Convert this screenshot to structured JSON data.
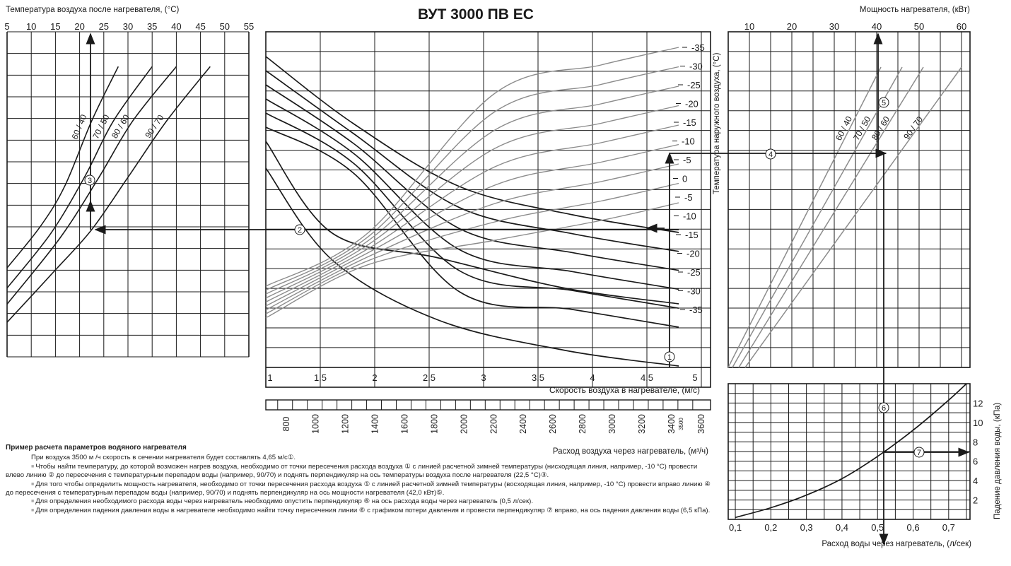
{
  "title": "ВУТ 3000 ПВ ЕС",
  "chart_data": [
    {
      "id": "outlet-temp",
      "type": "line",
      "xlabel": "Температура воздуха после нагревателя, (°C)",
      "x_ticks": [
        "5",
        "10",
        "15",
        "20",
        "25",
        "30",
        "35",
        "40",
        "45",
        "50",
        "55"
      ],
      "xlim": [
        5,
        55
      ],
      "series": [
        {
          "name": "60 / 40",
          "points": [
            [
              5,
              -14.5
            ],
            [
              12,
              -4
            ],
            [
              17,
              6
            ],
            [
              22.5,
              22
            ],
            [
              28,
              35.5
            ]
          ]
        },
        {
          "name": "70 / 50",
          "points": [
            [
              5,
              -19.5
            ],
            [
              14,
              -6
            ],
            [
              21,
              8
            ],
            [
              27,
              22
            ],
            [
              35,
              35.5
            ]
          ]
        },
        {
          "name": "80 / 60",
          "points": [
            [
              5,
              -23.5
            ],
            [
              16,
              -7
            ],
            [
              24,
              8
            ],
            [
              31,
              22
            ],
            [
              40,
              35.5
            ]
          ]
        },
        {
          "name": "90 / 70",
          "points": [
            [
              5,
              -28
            ],
            [
              15,
              -15
            ],
            [
              22.5,
              -5
            ],
            [
              30,
              8
            ],
            [
              38,
              22
            ],
            [
              47,
              35.5
            ]
          ]
        }
      ]
    },
    {
      "id": "air-speed",
      "type": "line",
      "ylabel": "Температура наружного воздуха, (°C)",
      "y_ticks": [
        "-35",
        "-30",
        "-25",
        "-20",
        "-15",
        "-10",
        "-5",
        "0",
        "-5",
        "-10",
        "-15",
        "-20",
        "-25",
        "-30",
        "-35"
      ],
      "x_ticks": [
        "1",
        "1,5",
        "2",
        "2,5",
        "3",
        "3,5",
        "4",
        "4,5",
        "5"
      ],
      "xlim": [
        1,
        5
      ],
      "x2label": "Скорость воздуха в нагревателе, (м/с)",
      "flow_label": "Расход воздуха через нагреватель, (м³/ч)",
      "flow_ticks": [
        "800",
        "1000",
        "1200",
        "1400",
        "1600",
        "1800",
        "2000",
        "2200",
        "2400",
        "2600",
        "2800",
        "3000",
        "3200",
        "3400",
        "3600"
      ],
      "flow_marker": "3500",
      "flow_lim": [
        720,
        3720
      ],
      "falling_temps": [
        -10,
        -15,
        -20,
        -25,
        -30,
        -35
      ],
      "rising_temps": [
        -35,
        -30,
        -25,
        -20,
        -15,
        -10,
        -5,
        0,
        -5,
        -10,
        -15,
        -20,
        -25,
        -30,
        -35
      ]
    },
    {
      "id": "heater-power",
      "type": "line",
      "xlabel": "Мощность нагревателя, (кВт)",
      "x_ticks": [
        "10",
        "20",
        "30",
        "40",
        "50",
        "60"
      ],
      "xlim": [
        5,
        62
      ],
      "series": [
        {
          "name": "60 / 40",
          "points": [
            [
              5,
              -35
            ],
            [
              28,
              2
            ],
            [
              41,
              20
            ]
          ]
        },
        {
          "name": "70 / 50",
          "points": [
            [
              6,
              -35
            ],
            [
              33,
              2
            ],
            [
              46,
              20
            ]
          ]
        },
        {
          "name": "80 / 60",
          "points": [
            [
              7.5,
              -35
            ],
            [
              37,
              2
            ],
            [
              51,
              20
            ]
          ]
        },
        {
          "name": "90 / 70",
          "points": [
            [
              9,
              -35
            ],
            [
              42,
              -8.5
            ],
            [
              60,
              20
            ]
          ]
        }
      ]
    },
    {
      "id": "pressure-drop",
      "type": "line",
      "xlabel": "Расход воды через нагреватель, (л/сек)",
      "ylabel": "Падение давления воды, (кПа)",
      "x_ticks": [
        "0,1",
        "0,2",
        "0,3",
        "0,4",
        "0,5",
        "0,6",
        "0,7"
      ],
      "y_ticks": [
        "2",
        "4",
        "6",
        "8",
        "10",
        "12"
      ],
      "xlim": [
        0.08,
        0.76
      ],
      "ylim": [
        0,
        14
      ],
      "series": [
        {
          "name": "",
          "points": [
            [
              0.1,
              0.2
            ],
            [
              0.2,
              1.2
            ],
            [
              0.3,
              2.5
            ],
            [
              0.4,
              4.2
            ],
            [
              0.5,
              6.5
            ],
            [
              0.6,
              9.2
            ],
            [
              0.7,
              12.3
            ],
            [
              0.75,
              14
            ]
          ]
        }
      ]
    }
  ],
  "example_steps": [
    "1",
    "2",
    "3",
    "4",
    "5",
    "6",
    "7"
  ],
  "notes": {
    "heading": "Пример расчета параметров водяного нагревателя",
    "p1": "При воздуха 3500 м /ч скорость в сечении нагревателя будет составлять 4,65 м/с①.",
    "p2": "Чтобы найти температуру, до которой возможен нагрев воздуха, необходимо от точки пересечения расхода воздуха ① с линией расчетной зимней температуры (нисходящая линия, например, -10 °C) провести влево линию ② до пересечения с температурным перепадом воды (например, 90/70) и поднять перпендикуляр на ось температуры воздуха после нагревателя (22,5 °C)③.",
    "p3": "Для того чтобы определить мощность нагревателя, необходимо от точки пересечения расхода воздуха ① с линией расчетной зимней температуры (восходящая линия, например, -10 °C) провести вправо линию ④ до пересечения с температурным перепадом воды (например, 90/70) и поднять перпендикуляр на ось мощности нагревателя (42,0 кВт)⑤.",
    "p4": "Для определения необходимого расхода воды через нагреватель необходимо опустить перпендикуляр ⑥ на ось расхода воды через нагреватель (0,5 л/сек).",
    "p5": "Для определения падения давления воды в нагревателе необходимо найти точку пересечения линии ⑥ с графиком потери давления и провести перпендикуляр ⑦ вправо, на ось падения давления воды (6,5 кПа)."
  },
  "colors": {
    "curve": "#1a1a1a",
    "gray_curve": "#8c8c8c",
    "grid": "#1a1a1a"
  }
}
